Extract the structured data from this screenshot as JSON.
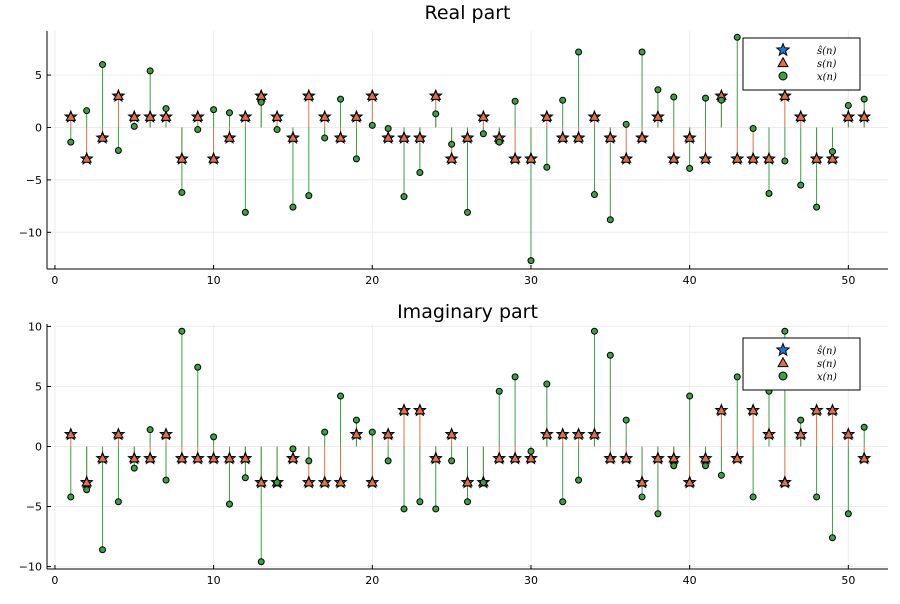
{
  "colors": {
    "s_hat": "#1f77d4",
    "s": "#e26f46",
    "x": "#3aa043",
    "s_line": "#e26f46",
    "x_line": "#3aa043",
    "grid": "#ececec"
  },
  "chart_data": [
    {
      "type": "scatter",
      "title": "Real part",
      "xlabel": "",
      "ylabel": "",
      "xlim": [
        -0.5,
        52.5
      ],
      "ylim": [
        -13.5,
        9.2
      ],
      "xticks": [
        0,
        10,
        20,
        30,
        40,
        50
      ],
      "yticks": [
        -10,
        -5,
        0,
        5
      ],
      "grid": true,
      "legend_position": "top-right",
      "x": [
        1,
        2,
        3,
        4,
        5,
        6,
        7,
        8,
        9,
        10,
        11,
        12,
        13,
        14,
        15,
        16,
        17,
        18,
        19,
        20,
        21,
        22,
        23,
        24,
        25,
        26,
        27,
        28,
        29,
        30,
        31,
        32,
        33,
        34,
        35,
        36,
        37,
        38,
        39,
        40,
        41,
        42,
        43,
        44,
        45,
        46,
        47,
        48,
        49,
        50,
        51
      ],
      "series": [
        {
          "name": "ŝ(n)",
          "marker": "star",
          "values": [
            1,
            -3,
            -1,
            3,
            1,
            1,
            1,
            -3,
            1,
            -3,
            -1,
            1,
            3,
            1,
            -1,
            3,
            1,
            -1,
            1,
            3,
            -1,
            -1,
            -1,
            3,
            -3,
            -1,
            1,
            -1,
            -3,
            -3,
            1,
            -1,
            -1,
            1,
            -1,
            -3,
            -1,
            1,
            -3,
            -1,
            -3,
            3,
            -3,
            -3,
            -3,
            3,
            1,
            -3,
            -3,
            1,
            1
          ]
        },
        {
          "name": "s(n)",
          "marker": "triangle",
          "values": [
            1,
            -3,
            -1,
            3,
            1,
            1,
            1,
            -3,
            1,
            -3,
            -1,
            1,
            3,
            1,
            -1,
            3,
            1,
            -1,
            1,
            3,
            -1,
            -1,
            -1,
            3,
            -3,
            -1,
            1,
            -1,
            -3,
            -3,
            1,
            -1,
            -1,
            1,
            -1,
            -3,
            -1,
            1,
            -3,
            -1,
            -3,
            3,
            -3,
            -3,
            -3,
            3,
            1,
            -3,
            -3,
            1,
            1
          ]
        },
        {
          "name": "x(n)",
          "marker": "circle",
          "values": [
            -1.4,
            1.6,
            6.0,
            -2.2,
            0.1,
            5.4,
            1.8,
            -6.2,
            -0.2,
            1.7,
            1.4,
            -8.1,
            2.4,
            -0.2,
            -7.6,
            -6.5,
            -1.0,
            2.7,
            -3.0,
            0.2,
            -0.1,
            -6.6,
            -4.3,
            1.3,
            -1.6,
            -8.1,
            -0.6,
            -1.4,
            2.5,
            -12.7,
            -3.8,
            2.6,
            7.2,
            -6.4,
            -8.8,
            0.3,
            7.2,
            3.6,
            2.9,
            -3.9,
            2.8,
            2.6,
            8.6,
            -0.1,
            -6.3,
            -3.2,
            -5.5,
            -7.6,
            -2.3,
            2.1,
            2.7
          ]
        }
      ]
    },
    {
      "type": "scatter",
      "title": "Imaginary part",
      "xlabel": "",
      "ylabel": "",
      "xlim": [
        -0.5,
        52.5
      ],
      "ylim": [
        -10.2,
        10.2
      ],
      "xticks": [
        0,
        10,
        20,
        30,
        40,
        50
      ],
      "yticks": [
        -10,
        -5,
        0,
        5,
        10
      ],
      "grid": true,
      "legend_position": "top-right",
      "x": [
        1,
        2,
        3,
        4,
        5,
        6,
        7,
        8,
        9,
        10,
        11,
        12,
        13,
        14,
        15,
        16,
        17,
        18,
        19,
        20,
        21,
        22,
        23,
        24,
        25,
        26,
        27,
        28,
        29,
        30,
        31,
        32,
        33,
        34,
        35,
        36,
        37,
        38,
        39,
        40,
        41,
        42,
        43,
        44,
        45,
        46,
        47,
        48,
        49,
        50,
        51
      ],
      "series": [
        {
          "name": "ŝ(n)",
          "marker": "star",
          "values": [
            1,
            -3,
            -1,
            1,
            -1,
            -1,
            1,
            -1,
            -1,
            -1,
            -1,
            -1,
            -3,
            -3,
            -1,
            -3,
            -3,
            -3,
            1,
            -3,
            1,
            3,
            3,
            -1,
            1,
            -3,
            -3,
            -1,
            -1,
            -1,
            1,
            1,
            1,
            1,
            -1,
            -1,
            -3,
            -1,
            -1,
            -3,
            -1,
            3,
            -1,
            3,
            1,
            -3,
            1,
            3,
            3,
            1,
            -1
          ]
        },
        {
          "name": "s(n)",
          "marker": "triangle",
          "values": [
            1,
            -3,
            -1,
            1,
            -1,
            -1,
            1,
            -1,
            -1,
            -1,
            -1,
            -1,
            -3,
            -3,
            -1,
            -3,
            -3,
            -3,
            1,
            -3,
            1,
            3,
            3,
            -1,
            1,
            -3,
            -3,
            -1,
            -1,
            -1,
            1,
            1,
            1,
            1,
            -1,
            -1,
            -3,
            -1,
            -1,
            -3,
            -1,
            3,
            -1,
            3,
            1,
            -3,
            1,
            3,
            3,
            1,
            -1
          ]
        },
        {
          "name": "x(n)",
          "marker": "circle",
          "values": [
            -4.2,
            -3.6,
            -8.6,
            -4.6,
            -1.8,
            1.4,
            -2.8,
            9.6,
            6.6,
            0.8,
            -4.8,
            -2.6,
            -9.6,
            -3.0,
            -0.2,
            -1.2,
            1.2,
            4.2,
            2.2,
            1.2,
            -1.2,
            -5.2,
            -4.6,
            -5.2,
            -1.2,
            -4.6,
            -3.0,
            4.6,
            5.8,
            -0.4,
            5.2,
            -4.6,
            -2.8,
            9.6,
            7.6,
            2.2,
            -4.2,
            -5.6,
            -1.6,
            4.2,
            -1.6,
            -2.4,
            5.8,
            -4.2,
            4.6,
            9.6,
            2.2,
            -4.2,
            -7.6,
            -5.6,
            1.6
          ]
        }
      ]
    }
  ]
}
